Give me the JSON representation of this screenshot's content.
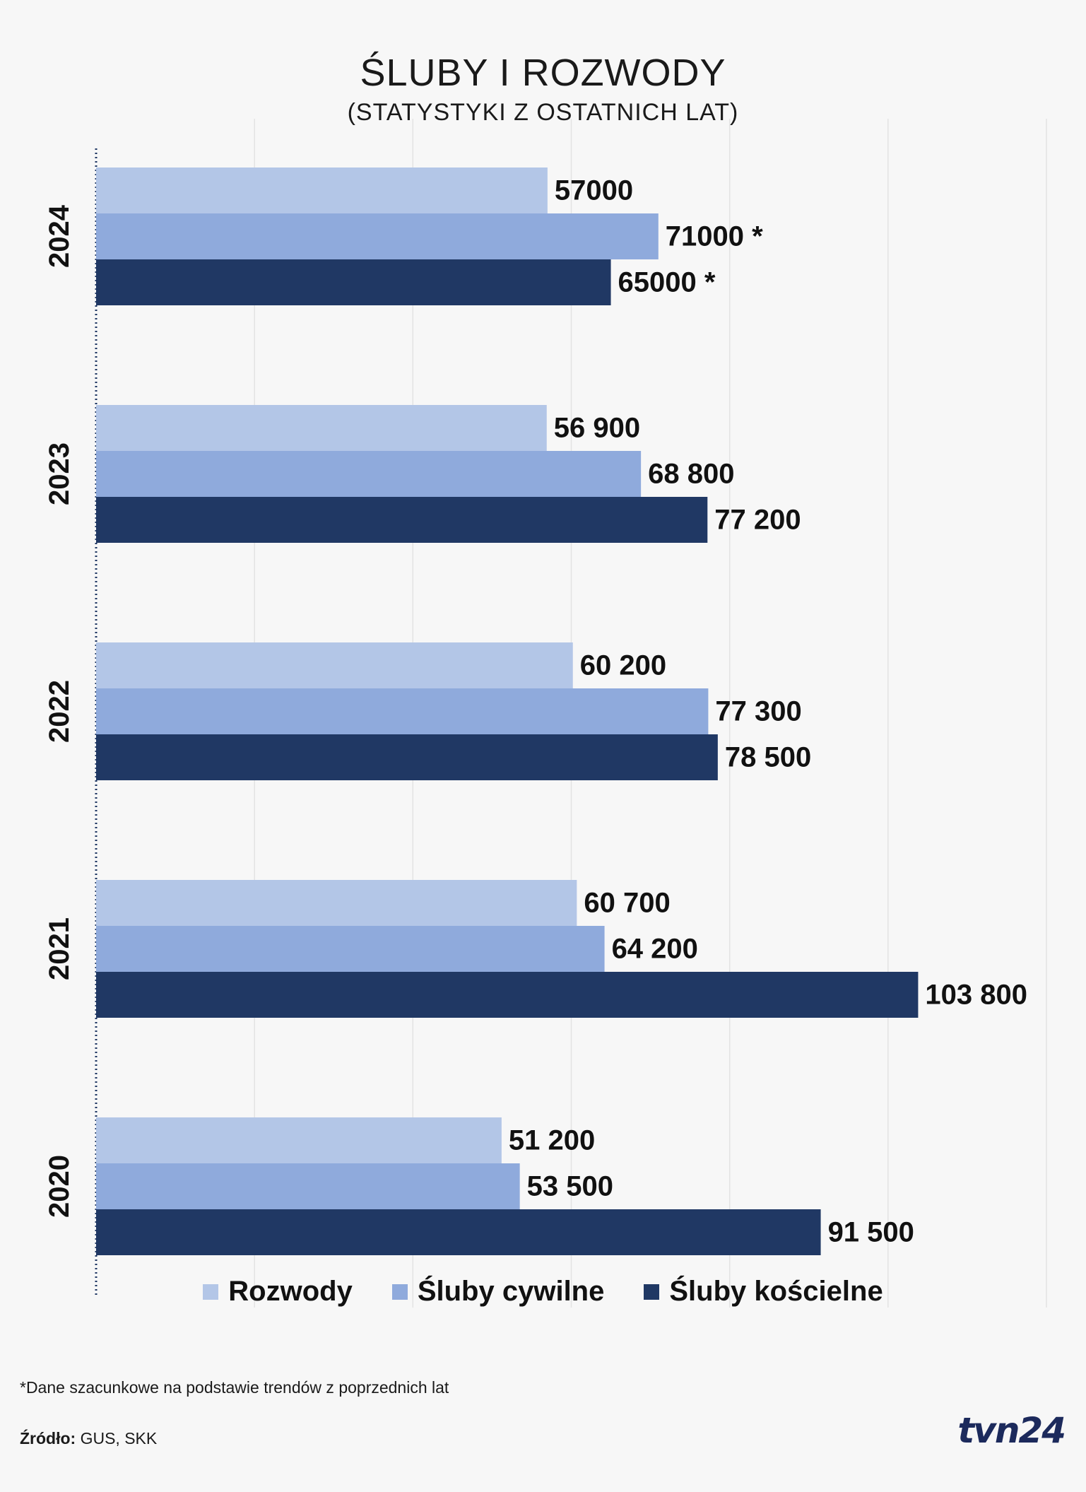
{
  "title": "ŚLUBY I ROZWODY",
  "subtitle": "(STATYSTYKI Z OSTATNICH LAT)",
  "footnote": "*Dane szacunkowe na podstawie trendów z poprzednich lat",
  "source_label": "Źródło:",
  "source_value": " GUS, SKK",
  "logo": "tvn24",
  "colors": {
    "Rozwody": "#b3c6e7",
    "Śluby cywilne": "#8faadc",
    "Śluby kościelne": "#203864",
    "background": "#f7f7f7",
    "gridline": "#e3e3e3",
    "axis": "#203864"
  },
  "chart_data": {
    "type": "bar",
    "orientation": "horizontal",
    "title": "ŚLUBY I ROZWODY",
    "subtitle": "(STATYSTYKI Z OSTATNICH LAT)",
    "categories": [
      "2024",
      "2023",
      "2022",
      "2021",
      "2020"
    ],
    "xlim": [
      0,
      120000
    ],
    "grid": true,
    "legend_position": "bottom",
    "series": [
      {
        "name": "Rozwody",
        "values": [
          57000,
          56900,
          60200,
          60700,
          51200
        ],
        "labels": [
          "57000",
          "56 900",
          "60 200",
          "60 700",
          "51 200"
        ]
      },
      {
        "name": "Śluby cywilne",
        "values": [
          71000,
          68800,
          77300,
          64200,
          53500
        ],
        "labels": [
          "71000 *",
          "68 800",
          "77 300",
          "64 200",
          "53 500"
        ]
      },
      {
        "name": "Śluby kościelne",
        "values": [
          65000,
          77200,
          78500,
          103800,
          91500
        ],
        "labels": [
          "65000 *",
          "77 200",
          "78 500",
          "103 800",
          "91 500"
        ]
      }
    ]
  }
}
